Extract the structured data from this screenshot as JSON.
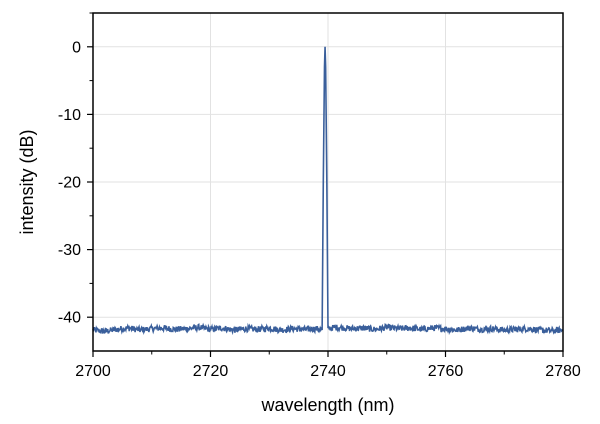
{
  "chart_data": {
    "type": "line",
    "title": "",
    "xlabel": "wavelength (nm)",
    "ylabel": "intensity (dB)",
    "xlim": [
      2700,
      2780
    ],
    "ylim": [
      -45,
      5
    ],
    "xticks": [
      2700,
      2720,
      2740,
      2760,
      2780
    ],
    "xtick_labels": [
      "2700",
      "2720",
      "2740",
      "2760",
      "2780"
    ],
    "yticks": [
      0,
      -10,
      -20,
      -30,
      -40
    ],
    "ytick_labels": [
      "0",
      "-10",
      "-20",
      "-30",
      "-40"
    ],
    "grid": true,
    "legend": "none",
    "series": [
      {
        "color": "#3a5f9b",
        "x": [
          2700,
          2702,
          2704,
          2706,
          2708,
          2710,
          2712,
          2714,
          2716,
          2718,
          2720,
          2722,
          2724,
          2726,
          2728,
          2730,
          2732,
          2734,
          2736,
          2738,
          2739.0,
          2739.2,
          2739.4,
          2739.5,
          2739.6,
          2739.8,
          2740.0,
          2740.3,
          2742,
          2744,
          2746,
          2748,
          2750,
          2752,
          2754,
          2756,
          2758,
          2760,
          2762,
          2764,
          2766,
          2768,
          2770,
          2772,
          2774,
          2776,
          2778,
          2780
        ],
        "y": [
          -41.9,
          -42.1,
          -41.8,
          -41.6,
          -41.9,
          -41.7,
          -41.6,
          -41.8,
          -41.7,
          -41.5,
          -41.8,
          -41.6,
          -41.9,
          -41.7,
          -41.8,
          -41.6,
          -41.9,
          -41.7,
          -41.8,
          -41.7,
          -41.9,
          -20,
          -3,
          0,
          -3,
          -20,
          -41.8,
          -41.6,
          -41.5,
          -41.7,
          -41.6,
          -41.8,
          -41.5,
          -41.7,
          -41.6,
          -41.8,
          -41.6,
          -41.7,
          -41.9,
          -41.6,
          -41.8,
          -41.7,
          -41.9,
          -41.8,
          -41.7,
          -41.9,
          -42.0,
          -41.9
        ]
      }
    ]
  }
}
